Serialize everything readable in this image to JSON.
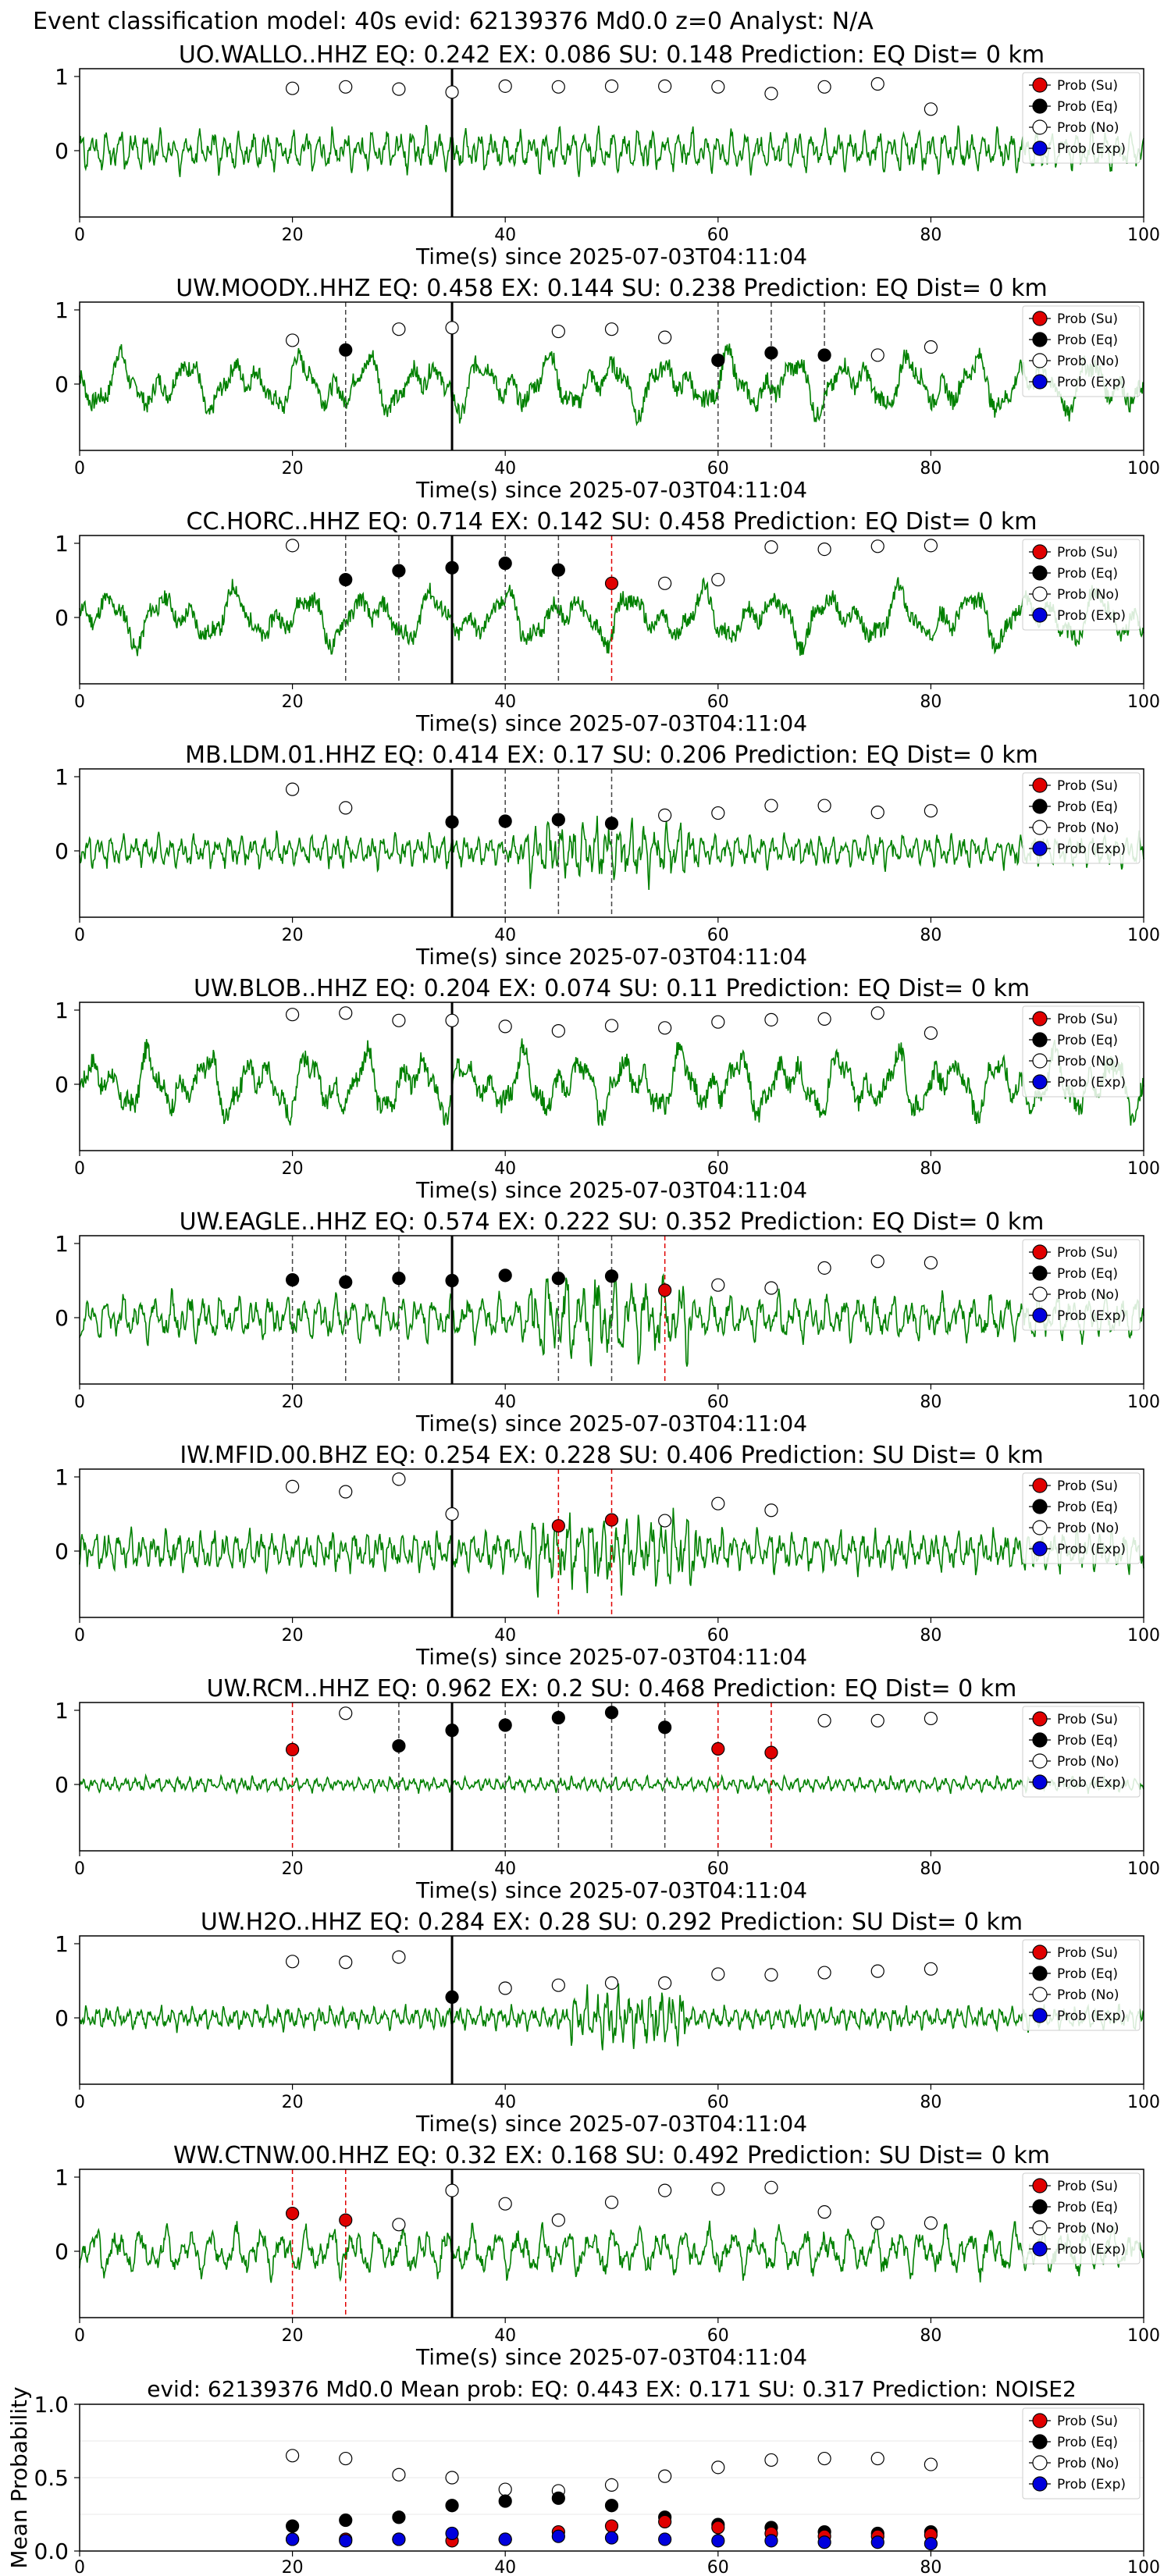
{
  "figure_title": "Event classification model: 40s evid: 62139376 Md0.0 z=0 Analyst: N/A",
  "legend": [
    {
      "label": "Prob (Su)",
      "color": "#e00000"
    },
    {
      "label": "Prob (Eq)",
      "color": "#000000"
    },
    {
      "label": "Prob (No)",
      "color": "#ffffff"
    },
    {
      "label": "Prob (Exp)",
      "color": "#0000dd"
    }
  ],
  "colors": {
    "waveform": "#008000",
    "su_line": "#e00000",
    "eq_line": "#444444",
    "origin_line": "#000000"
  },
  "chart_data": [
    {
      "type": "line",
      "station_title": "UO.WALLO..HHZ    EQ: 0.242  EX: 0.086  SU: 0.148    Prediction: EQ    Dist= 0 km",
      "xlabel": "Time(s) since 2025-07-03T04:11:04",
      "xlim": [
        0,
        100
      ],
      "xticks": [
        "0",
        "20",
        "40",
        "60",
        "80",
        "100"
      ],
      "yticks": [
        "1",
        "0"
      ],
      "origin_time": 35,
      "wave": {
        "amp": 0.25,
        "freq": 1.6,
        "seed": 3
      },
      "eq_lines": [],
      "su_lines": [],
      "no_points": [
        [
          20,
          0.84
        ],
        [
          25,
          0.86
        ],
        [
          30,
          0.83
        ],
        [
          35,
          0.79
        ],
        [
          40,
          0.87
        ],
        [
          45,
          0.86
        ],
        [
          50,
          0.87
        ],
        [
          55,
          0.87
        ],
        [
          60,
          0.86
        ],
        [
          65,
          0.77
        ],
        [
          70,
          0.86
        ],
        [
          75,
          0.9
        ],
        [
          80,
          0.56
        ]
      ],
      "eq_points": [],
      "su_points": []
    },
    {
      "type": "line",
      "station_title": "UW.MOODY..HHZ    EQ: 0.458  EX: 0.144  SU: 0.238    Prediction: EQ    Dist= 0 km",
      "xlabel": "Time(s) since 2025-07-03T04:11:04",
      "xlim": [
        0,
        100
      ],
      "xticks": [
        "0",
        "20",
        "40",
        "60",
        "80",
        "100"
      ],
      "yticks": [
        "1",
        "0"
      ],
      "origin_time": 35,
      "wave": {
        "amp": 0.4,
        "freq": 0.35,
        "seed": 7
      },
      "eq_lines": [
        25,
        60,
        65,
        70
      ],
      "su_lines": [],
      "no_points": [
        [
          20,
          0.59
        ],
        [
          30,
          0.74
        ],
        [
          35,
          0.76
        ],
        [
          45,
          0.71
        ],
        [
          50,
          0.74
        ],
        [
          55,
          0.63
        ],
        [
          75,
          0.39
        ],
        [
          80,
          0.5
        ]
      ],
      "eq_points": [
        [
          25,
          0.46
        ],
        [
          60,
          0.32
        ],
        [
          65,
          0.42
        ],
        [
          70,
          0.39
        ]
      ],
      "su_points": []
    },
    {
      "type": "line",
      "station_title": "CC.HORC..HHZ    EQ: 0.714  EX: 0.142  SU: 0.458    Prediction: EQ    Dist= 0 km",
      "xlabel": "Time(s) since 2025-07-03T04:11:04",
      "xlim": [
        0,
        100
      ],
      "xticks": [
        "0",
        "20",
        "40",
        "60",
        "80",
        "100"
      ],
      "yticks": [
        "1",
        "0"
      ],
      "origin_time": 35,
      "wave": {
        "amp": 0.38,
        "freq": 0.32,
        "seed": 11
      },
      "eq_lines": [
        25,
        30,
        40,
        45
      ],
      "su_lines": [
        50
      ],
      "no_points": [
        [
          20,
          0.97
        ],
        [
          55,
          0.46
        ],
        [
          60,
          0.51
        ],
        [
          65,
          0.95
        ],
        [
          70,
          0.92
        ],
        [
          75,
          0.96
        ],
        [
          80,
          0.97
        ]
      ],
      "eq_points": [
        [
          25,
          0.51
        ],
        [
          30,
          0.63
        ],
        [
          35,
          0.67
        ],
        [
          40,
          0.73
        ],
        [
          45,
          0.64
        ]
      ],
      "su_points": [
        [
          50,
          0.46
        ]
      ]
    },
    {
      "type": "line",
      "station_title": "MB.LDM.01.HHZ    EQ: 0.414  EX: 0.17  SU: 0.206    Prediction: EQ    Dist= 0 km",
      "xlabel": "Time(s) since 2025-07-03T04:11:04",
      "xlim": [
        0,
        100
      ],
      "xticks": [
        "0",
        "20",
        "40",
        "60",
        "80",
        "100"
      ],
      "yticks": [
        "1",
        "0"
      ],
      "origin_time": 35,
      "wave": {
        "amp": 0.2,
        "freq": 1.8,
        "seed": 13
      },
      "eq_lines": [
        40,
        45,
        50
      ],
      "su_lines": [],
      "no_points": [
        [
          20,
          0.83
        ],
        [
          25,
          0.58
        ],
        [
          55,
          0.48
        ],
        [
          60,
          0.51
        ],
        [
          65,
          0.61
        ],
        [
          70,
          0.61
        ],
        [
          75,
          0.52
        ],
        [
          80,
          0.54
        ]
      ],
      "eq_points": [
        [
          35,
          0.39
        ],
        [
          40,
          0.4
        ],
        [
          45,
          0.42
        ],
        [
          50,
          0.37
        ]
      ],
      "su_points": []
    },
    {
      "type": "line",
      "station_title": "UW.BLOB..HHZ    EQ: 0.204  EX: 0.074  SU: 0.11    Prediction: EQ    Dist= 0 km",
      "xlabel": "Time(s) since 2025-07-03T04:11:04",
      "xlim": [
        0,
        100
      ],
      "xticks": [
        "0",
        "20",
        "40",
        "60",
        "80",
        "100"
      ],
      "yticks": [
        "1",
        "0"
      ],
      "origin_time": 35,
      "wave": {
        "amp": 0.45,
        "freq": 0.4,
        "seed": 17
      },
      "eq_lines": [],
      "su_lines": [],
      "no_points": [
        [
          20,
          0.94
        ],
        [
          25,
          0.96
        ],
        [
          30,
          0.86
        ],
        [
          35,
          0.86
        ],
        [
          40,
          0.78
        ],
        [
          45,
          0.72
        ],
        [
          50,
          0.79
        ],
        [
          55,
          0.76
        ],
        [
          60,
          0.84
        ],
        [
          65,
          0.87
        ],
        [
          70,
          0.88
        ],
        [
          75,
          0.96
        ],
        [
          80,
          0.69
        ]
      ],
      "eq_points": [],
      "su_points": []
    },
    {
      "type": "line",
      "station_title": "UW.EAGLE..HHZ    EQ: 0.574  EX: 0.222  SU: 0.352    Prediction: EQ    Dist= 0 km",
      "xlabel": "Time(s) since 2025-07-03T04:11:04",
      "xlim": [
        0,
        100
      ],
      "xticks": [
        "0",
        "20",
        "40",
        "60",
        "80",
        "100"
      ],
      "yticks": [
        "1",
        "0"
      ],
      "origin_time": 35,
      "wave": {
        "amp": 0.28,
        "freq": 1.3,
        "seed": 19
      },
      "eq_lines": [
        20,
        25,
        30,
        45,
        50
      ],
      "su_lines": [
        55
      ],
      "no_points": [
        [
          60,
          0.44
        ],
        [
          65,
          0.4
        ],
        [
          70,
          0.67
        ],
        [
          75,
          0.76
        ],
        [
          80,
          0.74
        ]
      ],
      "eq_points": [
        [
          20,
          0.51
        ],
        [
          25,
          0.48
        ],
        [
          30,
          0.53
        ],
        [
          35,
          0.5
        ],
        [
          40,
          0.57
        ],
        [
          45,
          0.53
        ],
        [
          50,
          0.56
        ]
      ],
      "su_points": [
        [
          55,
          0.37
        ]
      ]
    },
    {
      "type": "line",
      "station_title": "IW.MFID.00.BHZ    EQ: 0.254  EX: 0.228  SU: 0.406    Prediction: SU    Dist= 0 km",
      "xlabel": "Time(s) since 2025-07-03T04:11:04",
      "xlim": [
        0,
        100
      ],
      "xticks": [
        "0",
        "20",
        "40",
        "60",
        "80",
        "100"
      ],
      "yticks": [
        "1",
        "0"
      ],
      "origin_time": 35,
      "wave": {
        "amp": 0.25,
        "freq": 1.8,
        "seed": 23
      },
      "eq_lines": [],
      "su_lines": [
        45,
        50
      ],
      "no_points": [
        [
          20,
          0.87
        ],
        [
          25,
          0.8
        ],
        [
          30,
          0.97
        ],
        [
          35,
          0.5
        ],
        [
          55,
          0.41
        ],
        [
          60,
          0.64
        ],
        [
          65,
          0.55
        ]
      ],
      "eq_points": [],
      "su_points": [
        [
          45,
          0.34
        ],
        [
          50,
          0.42
        ]
      ]
    },
    {
      "type": "line",
      "station_title": "UW.RCM..HHZ    EQ: 0.962  EX: 0.2  SU: 0.468    Prediction: EQ    Dist= 0 km",
      "xlabel": "Time(s) since 2025-07-03T04:11:04",
      "xlim": [
        0,
        100
      ],
      "xticks": [
        "0",
        "20",
        "40",
        "60",
        "80",
        "100"
      ],
      "yticks": [
        "1",
        "0"
      ],
      "origin_time": 35,
      "wave": {
        "amp": 0.09,
        "freq": 2.0,
        "seed": 29
      },
      "eq_lines": [
        30,
        40,
        45,
        50,
        55
      ],
      "su_lines": [
        20,
        60,
        65
      ],
      "no_points": [
        [
          25,
          0.96
        ],
        [
          70,
          0.86
        ],
        [
          75,
          0.86
        ],
        [
          80,
          0.89
        ]
      ],
      "eq_points": [
        [
          30,
          0.52
        ],
        [
          35,
          0.73
        ],
        [
          40,
          0.8
        ],
        [
          45,
          0.9
        ],
        [
          50,
          0.97
        ],
        [
          55,
          0.77
        ]
      ],
      "su_points": [
        [
          20,
          0.47
        ],
        [
          60,
          0.48
        ],
        [
          65,
          0.43
        ]
      ]
    },
    {
      "type": "line",
      "station_title": "UW.H2O..HHZ    EQ: 0.284  EX: 0.28  SU: 0.292    Prediction: SU    Dist= 0 km",
      "xlabel": "Time(s) since 2025-07-03T04:11:04",
      "xlim": [
        0,
        100
      ],
      "xticks": [
        "0",
        "20",
        "40",
        "60",
        "80",
        "100"
      ],
      "yticks": [
        "1",
        "0"
      ],
      "origin_time": 35,
      "wave": {
        "amp": 0.14,
        "freq": 2.0,
        "seed": 31
      },
      "eq_lines": [],
      "su_lines": [],
      "no_points": [
        [
          20,
          0.76
        ],
        [
          25,
          0.75
        ],
        [
          30,
          0.82
        ],
        [
          40,
          0.4
        ],
        [
          45,
          0.44
        ],
        [
          50,
          0.47
        ],
        [
          55,
          0.47
        ],
        [
          60,
          0.59
        ],
        [
          65,
          0.58
        ],
        [
          70,
          0.61
        ],
        [
          75,
          0.63
        ],
        [
          80,
          0.66
        ]
      ],
      "eq_points": [
        [
          35,
          0.28
        ]
      ],
      "su_points": []
    },
    {
      "type": "line",
      "station_title": "WW.CTNW.00.HHZ    EQ: 0.32  EX: 0.168  SU: 0.492    Prediction: SU    Dist= 0 km",
      "xlabel": "Time(s) since 2025-07-03T04:11:04",
      "xlim": [
        0,
        100
      ],
      "xticks": [
        "0",
        "20",
        "40",
        "60",
        "80",
        "100"
      ],
      "yticks": [
        "1",
        "0"
      ],
      "origin_time": 35,
      "wave": {
        "amp": 0.3,
        "freq": 0.9,
        "seed": 37
      },
      "eq_lines": [],
      "su_lines": [
        20,
        25
      ],
      "no_points": [
        [
          30,
          0.36
        ],
        [
          35,
          0.82
        ],
        [
          40,
          0.64
        ],
        [
          45,
          0.42
        ],
        [
          50,
          0.66
        ],
        [
          55,
          0.82
        ],
        [
          60,
          0.84
        ],
        [
          65,
          0.86
        ],
        [
          70,
          0.53
        ],
        [
          75,
          0.38
        ],
        [
          80,
          0.38
        ]
      ],
      "eq_points": [],
      "su_points": [
        [
          20,
          0.51
        ],
        [
          25,
          0.42
        ]
      ]
    },
    {
      "type": "scatter",
      "station_title": "evid: 62139376  Md0.0   Mean prob:   EQ: 0.443  EX: 0.171  SU: 0.317   Prediction: NOISE2",
      "ylabel": "Mean Probability",
      "xlim": [
        0,
        100
      ],
      "ylim": [
        0,
        1
      ],
      "xticks": [
        "0",
        "20",
        "40",
        "60",
        "80",
        "100"
      ],
      "yticks": [
        "1.0",
        "0.5",
        "0.0"
      ],
      "no_points": [
        [
          20,
          0.65
        ],
        [
          25,
          0.63
        ],
        [
          30,
          0.52
        ],
        [
          35,
          0.5
        ],
        [
          40,
          0.42
        ],
        [
          45,
          0.41
        ],
        [
          50,
          0.45
        ],
        [
          55,
          0.51
        ],
        [
          60,
          0.57
        ],
        [
          65,
          0.62
        ],
        [
          70,
          0.63
        ],
        [
          75,
          0.63
        ],
        [
          80,
          0.59
        ]
      ],
      "eq_points": [
        [
          20,
          0.17
        ],
        [
          25,
          0.21
        ],
        [
          30,
          0.23
        ],
        [
          35,
          0.31
        ],
        [
          40,
          0.34
        ],
        [
          45,
          0.36
        ],
        [
          50,
          0.31
        ],
        [
          55,
          0.23
        ],
        [
          60,
          0.18
        ],
        [
          65,
          0.16
        ],
        [
          70,
          0.13
        ],
        [
          75,
          0.12
        ],
        [
          80,
          0.13
        ]
      ],
      "su_points": [
        [
          20,
          0.08
        ],
        [
          25,
          0.08
        ],
        [
          30,
          0.08
        ],
        [
          35,
          0.07
        ],
        [
          40,
          0.08
        ],
        [
          45,
          0.13
        ],
        [
          50,
          0.17
        ],
        [
          55,
          0.2
        ],
        [
          60,
          0.16
        ],
        [
          65,
          0.12
        ],
        [
          70,
          0.1
        ],
        [
          75,
          0.1
        ],
        [
          80,
          0.11
        ]
      ],
      "exp_points": [
        [
          20,
          0.08
        ],
        [
          25,
          0.07
        ],
        [
          30,
          0.08
        ],
        [
          35,
          0.12
        ],
        [
          40,
          0.08
        ],
        [
          45,
          0.1
        ],
        [
          50,
          0.09
        ],
        [
          55,
          0.08
        ],
        [
          60,
          0.07
        ],
        [
          65,
          0.07
        ],
        [
          70,
          0.06
        ],
        [
          75,
          0.06
        ],
        [
          80,
          0.05
        ]
      ]
    }
  ]
}
